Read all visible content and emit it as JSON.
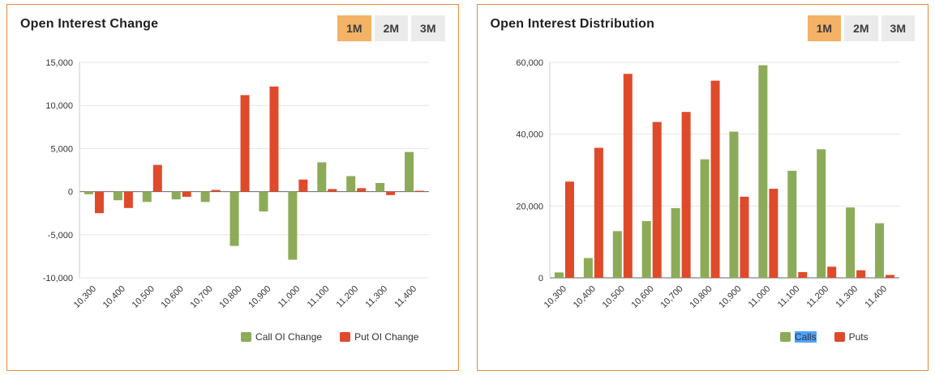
{
  "panels": [
    {
      "title": "Open Interest Change",
      "range_buttons": [
        "1M",
        "2M",
        "3M"
      ],
      "selected_range": "1M"
    },
    {
      "title": "Open Interest Distribution",
      "range_buttons": [
        "1M",
        "2M",
        "3M"
      ],
      "selected_range": "1M"
    }
  ],
  "colors": {
    "call_green": "#8cab58",
    "put_red": "#df4a2b",
    "active_range_bg": "#f3b266",
    "card_border": "#e78b3a",
    "legend_highlight": "#4da3ff"
  },
  "chart_data": [
    {
      "type": "bar",
      "title": "Open Interest Change",
      "categories": [
        "10,300",
        "10,400",
        "10,500",
        "10,600",
        "10,700",
        "10,800",
        "10,900",
        "11,000",
        "11,100",
        "11,200",
        "11,300",
        "11,400"
      ],
      "series": [
        {
          "name": "Call OI Change",
          "color": "#8cab58",
          "selected": false,
          "values": [
            -300,
            -1000,
            -1200,
            -900,
            -1200,
            -6300,
            -2300,
            -7900,
            3400,
            1800,
            1000,
            4600
          ]
        },
        {
          "name": "Put OI Change",
          "color": "#df4a2b",
          "selected": false,
          "values": [
            -2500,
            -1900,
            3100,
            -600,
            200,
            11200,
            12200,
            1400,
            300,
            400,
            -400,
            100
          ]
        }
      ],
      "xlabel": "",
      "ylabel": "",
      "ylim": [
        -10000,
        15000
      ],
      "yticks": [
        -10000,
        -5000,
        0,
        5000,
        10000,
        15000
      ],
      "ytick_labels": [
        "-10,000",
        "-5,000",
        "0",
        "5,000",
        "10,000",
        "15,000"
      ],
      "grid": true,
      "legend_position": "bottom"
    },
    {
      "type": "bar",
      "title": "Open Interest Distribution",
      "categories": [
        "10,300",
        "10,400",
        "10,500",
        "10,600",
        "10,700",
        "10,800",
        "10,900",
        "11,000",
        "11,100",
        "11,200",
        "11,300",
        "11,400"
      ],
      "series": [
        {
          "name": "Calls",
          "color": "#8cab58",
          "selected": true,
          "values": [
            1500,
            5500,
            13000,
            15800,
            19400,
            33000,
            40700,
            59200,
            29800,
            35800,
            19600,
            15200
          ]
        },
        {
          "name": "Puts",
          "color": "#df4a2b",
          "selected": false,
          "values": [
            26800,
            36200,
            56800,
            43400,
            46200,
            54900,
            22600,
            24800,
            1600,
            3100,
            2100,
            800
          ]
        }
      ],
      "xlabel": "",
      "ylabel": "",
      "ylim": [
        0,
        60000
      ],
      "yticks": [
        0,
        20000,
        40000,
        60000
      ],
      "ytick_labels": [
        "0",
        "20,000",
        "40,000",
        "60,000"
      ],
      "grid": true,
      "legend_position": "bottom"
    }
  ]
}
